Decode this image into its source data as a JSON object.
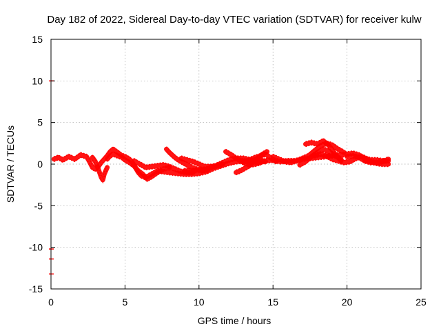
{
  "chart_data": {
    "type": "scatter",
    "title": "Day 182 of 2022, Sidereal Day-to-day VTEC variation (SDTVAR) for receiver kulw",
    "xlabel": "GPS time / hours",
    "ylabel": "SDTVAR / TECUs",
    "xlim": [
      0,
      25
    ],
    "ylim": [
      -15,
      15
    ],
    "xticks": [
      0,
      5,
      10,
      15,
      20,
      25
    ],
    "yticks": [
      -15,
      -10,
      -5,
      0,
      5,
      10,
      15
    ],
    "grid": true,
    "color": "#ff0000",
    "series": [
      {
        "name": "SDTVAR",
        "tracks": [
          [
            [
              0.2,
              0.6
            ],
            [
              0.5,
              0.8
            ],
            [
              0.8,
              0.5
            ],
            [
              1.2,
              0.9
            ],
            [
              1.6,
              0.6
            ],
            [
              2.0,
              1.1
            ],
            [
              2.4,
              0.9
            ],
            [
              2.6,
              0.3
            ],
            [
              2.8,
              -0.4
            ],
            [
              3.0,
              -0.6
            ],
            [
              3.2,
              -0.3
            ],
            [
              3.4,
              0.2
            ],
            [
              3.6,
              0.6
            ],
            [
              3.8,
              1.0
            ],
            [
              4.0,
              1.5
            ],
            [
              4.2,
              1.8
            ],
            [
              4.5,
              1.4
            ],
            [
              4.8,
              1.0
            ],
            [
              5.0,
              0.9
            ],
            [
              5.3,
              0.6
            ],
            [
              5.5,
              0.2
            ],
            [
              5.7,
              -0.4
            ],
            [
              5.9,
              -1.0
            ],
            [
              6.1,
              -1.4
            ],
            [
              6.4,
              -1.6
            ],
            [
              6.8,
              -1.2
            ],
            [
              7.2,
              -0.8
            ],
            [
              7.6,
              -0.9
            ],
            [
              8.0,
              -1.0
            ],
            [
              8.5,
              -1.1
            ],
            [
              9.0,
              -1.2
            ],
            [
              9.5,
              -1.2
            ],
            [
              10.0,
              -1.1
            ],
            [
              10.5,
              -0.9
            ],
            [
              11.0,
              -0.5
            ],
            [
              11.5,
              -0.2
            ],
            [
              12.0,
              0.1
            ],
            [
              12.5,
              0.3
            ],
            [
              13.0,
              0.4
            ],
            [
              13.5,
              0.3
            ],
            [
              14.0,
              0.2
            ],
            [
              14.5,
              0.4
            ],
            [
              15.0,
              0.5
            ],
            [
              15.5,
              0.3
            ],
            [
              16.0,
              0.4
            ],
            [
              16.5,
              0.4
            ],
            [
              17.0,
              0.6
            ],
            [
              17.5,
              0.7
            ],
            [
              18.0,
              0.8
            ],
            [
              18.5,
              0.9
            ],
            [
              19.0,
              1.0
            ],
            [
              19.5,
              1.1
            ],
            [
              20.0,
              1.2
            ],
            [
              20.4,
              1.3
            ],
            [
              20.8,
              1.1
            ],
            [
              21.2,
              0.7
            ],
            [
              21.6,
              0.5
            ],
            [
              22.0,
              0.5
            ],
            [
              22.4,
              0.4
            ],
            [
              22.8,
              0.4
            ]
          ],
          [
            [
              2.8,
              0.8
            ],
            [
              3.0,
              0.3
            ],
            [
              3.2,
              -0.6
            ],
            [
              3.4,
              -1.6
            ],
            [
              3.5,
              -1.9
            ],
            [
              3.6,
              -1.2
            ],
            [
              3.8,
              -0.4
            ]
          ],
          [
            [
              3.8,
              0.6
            ],
            [
              4.0,
              1.0
            ],
            [
              4.2,
              1.2
            ],
            [
              4.5,
              1.0
            ],
            [
              4.8,
              0.8
            ],
            [
              5.0,
              0.5
            ],
            [
              5.3,
              0.2
            ],
            [
              5.6,
              -0.2
            ],
            [
              5.9,
              -0.8
            ],
            [
              6.2,
              -1.2
            ],
            [
              6.5,
              -1.8
            ],
            [
              6.8,
              -1.5
            ],
            [
              7.2,
              -1.0
            ],
            [
              7.6,
              -0.6
            ],
            [
              8.0,
              -0.4
            ]
          ],
          [
            [
              5.6,
              0.4
            ],
            [
              6.0,
              0.0
            ],
            [
              6.4,
              -0.4
            ],
            [
              6.8,
              -0.3
            ],
            [
              7.2,
              -0.2
            ],
            [
              7.6,
              -0.1
            ],
            [
              8.0,
              -0.3
            ],
            [
              8.4,
              -0.6
            ],
            [
              8.8,
              -0.9
            ],
            [
              9.2,
              -1.0
            ],
            [
              9.6,
              -1.0
            ]
          ],
          [
            [
              7.8,
              1.8
            ],
            [
              8.0,
              1.4
            ],
            [
              8.3,
              0.9
            ],
            [
              8.6,
              0.5
            ],
            [
              9.0,
              0.1
            ],
            [
              9.4,
              -0.3
            ],
            [
              9.8,
              -0.6
            ],
            [
              10.2,
              -0.8
            ],
            [
              10.6,
              -0.7
            ]
          ],
          [
            [
              8.8,
              0.7
            ],
            [
              9.2,
              0.5
            ],
            [
              9.6,
              0.3
            ],
            [
              10.0,
              0.0
            ],
            [
              10.4,
              -0.3
            ],
            [
              10.8,
              -0.3
            ],
            [
              11.2,
              -0.2
            ],
            [
              11.6,
              0.0
            ]
          ],
          [
            [
              9.0,
              -0.8
            ],
            [
              9.5,
              -0.8
            ],
            [
              10.0,
              -0.7
            ],
            [
              10.5,
              -0.6
            ],
            [
              11.0,
              -0.3
            ],
            [
              11.5,
              0.1
            ],
            [
              12.0,
              0.5
            ],
            [
              12.5,
              0.7
            ],
            [
              13.0,
              0.7
            ],
            [
              13.5,
              0.5
            ],
            [
              14.0,
              0.5
            ],
            [
              14.5,
              0.3
            ]
          ],
          [
            [
              11.8,
              1.5
            ],
            [
              12.2,
              1.1
            ],
            [
              12.6,
              0.6
            ],
            [
              13.0,
              0.2
            ],
            [
              13.4,
              -0.1
            ],
            [
              13.8,
              0.0
            ],
            [
              14.2,
              0.2
            ]
          ],
          [
            [
              12.5,
              -1.0
            ],
            [
              12.8,
              -0.8
            ],
            [
              13.1,
              -0.5
            ],
            [
              13.4,
              -0.2
            ],
            [
              13.7,
              0.3
            ],
            [
              14.0,
              0.8
            ],
            [
              14.3,
              1.2
            ],
            [
              14.6,
              1.5
            ]
          ],
          [
            [
              13.0,
              0.2
            ],
            [
              13.4,
              0.5
            ],
            [
              13.8,
              0.8
            ],
            [
              14.2,
              1.0
            ],
            [
              14.5,
              1.2
            ],
            [
              14.8,
              0.8
            ],
            [
              15.2,
              0.3
            ]
          ],
          [
            [
              15.0,
              0.9
            ],
            [
              15.4,
              0.6
            ],
            [
              15.8,
              0.3
            ],
            [
              16.2,
              0.2
            ],
            [
              16.6,
              0.4
            ],
            [
              17.0,
              0.7
            ],
            [
              17.4,
              1.0
            ],
            [
              17.8,
              1.6
            ],
            [
              18.2,
              2.2
            ],
            [
              18.6,
              2.5
            ],
            [
              19.0,
              2.3
            ],
            [
              19.4,
              1.8
            ],
            [
              19.8,
              1.4
            ]
          ],
          [
            [
              16.8,
              -0.1
            ],
            [
              17.2,
              0.3
            ],
            [
              17.6,
              0.9
            ],
            [
              18.0,
              1.4
            ],
            [
              18.4,
              1.8
            ],
            [
              18.8,
              1.5
            ],
            [
              19.2,
              1.0
            ],
            [
              19.6,
              0.6
            ]
          ],
          [
            [
              17.2,
              2.4
            ],
            [
              17.6,
              2.6
            ],
            [
              18.0,
              2.4
            ],
            [
              18.4,
              2.8
            ],
            [
              18.8,
              2.2
            ],
            [
              19.2,
              1.2
            ],
            [
              19.6,
              0.4
            ]
          ],
          [
            [
              17.8,
              1.0
            ],
            [
              18.2,
              1.2
            ],
            [
              18.6,
              1.0
            ],
            [
              19.0,
              0.6
            ],
            [
              19.4,
              0.4
            ],
            [
              19.8,
              0.2
            ],
            [
              20.2,
              0.3
            ],
            [
              20.6,
              0.7
            ],
            [
              21.0,
              0.9
            ],
            [
              21.4,
              0.6
            ]
          ],
          [
            [
              20.0,
              0.9
            ],
            [
              20.4,
              1.0
            ],
            [
              20.8,
              0.8
            ],
            [
              21.2,
              0.4
            ],
            [
              21.6,
              0.3
            ],
            [
              22.0,
              0.1
            ],
            [
              22.4,
              0.0
            ],
            [
              22.8,
              0.0
            ]
          ],
          [
            [
              21.2,
              0.4
            ],
            [
              21.6,
              0.2
            ],
            [
              22.0,
              0.2
            ],
            [
              22.4,
              0.3
            ],
            [
              22.8,
              0.6
            ]
          ]
        ],
        "outliers": [
          [
            0.0,
            10.0
          ],
          [
            0.0,
            -10.2
          ],
          [
            0.0,
            -11.4
          ],
          [
            0.0,
            -13.2
          ]
        ]
      }
    ]
  }
}
